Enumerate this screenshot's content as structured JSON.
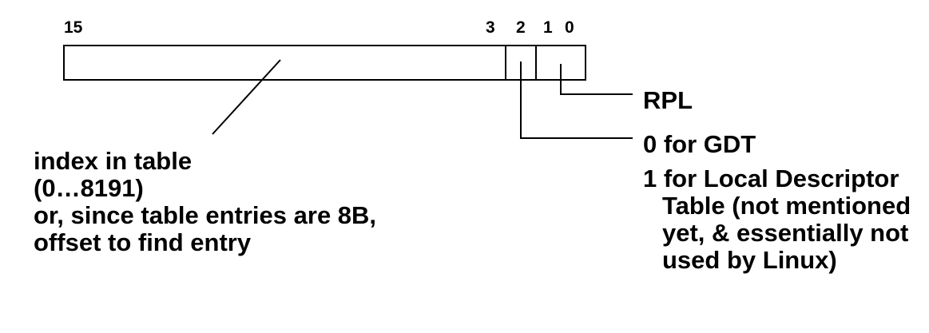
{
  "bit_numbers": {
    "b15": "15",
    "b3": "3",
    "b2": "2",
    "b1": "1",
    "b0": "0"
  },
  "labels": {
    "rpl": "RPL",
    "gdt": "0 for GDT",
    "ldt_lines": [
      "1 for Local Descriptor",
      "Table (not mentioned",
      "yet, & essentially not",
      "used by Linux)"
    ],
    "index_lines": [
      "index in table",
      "(0…8191)",
      "or, since table entries are 8B,",
      "offset to find entry"
    ]
  },
  "colors": {
    "stroke": "#000000",
    "background": "#ffffff"
  }
}
